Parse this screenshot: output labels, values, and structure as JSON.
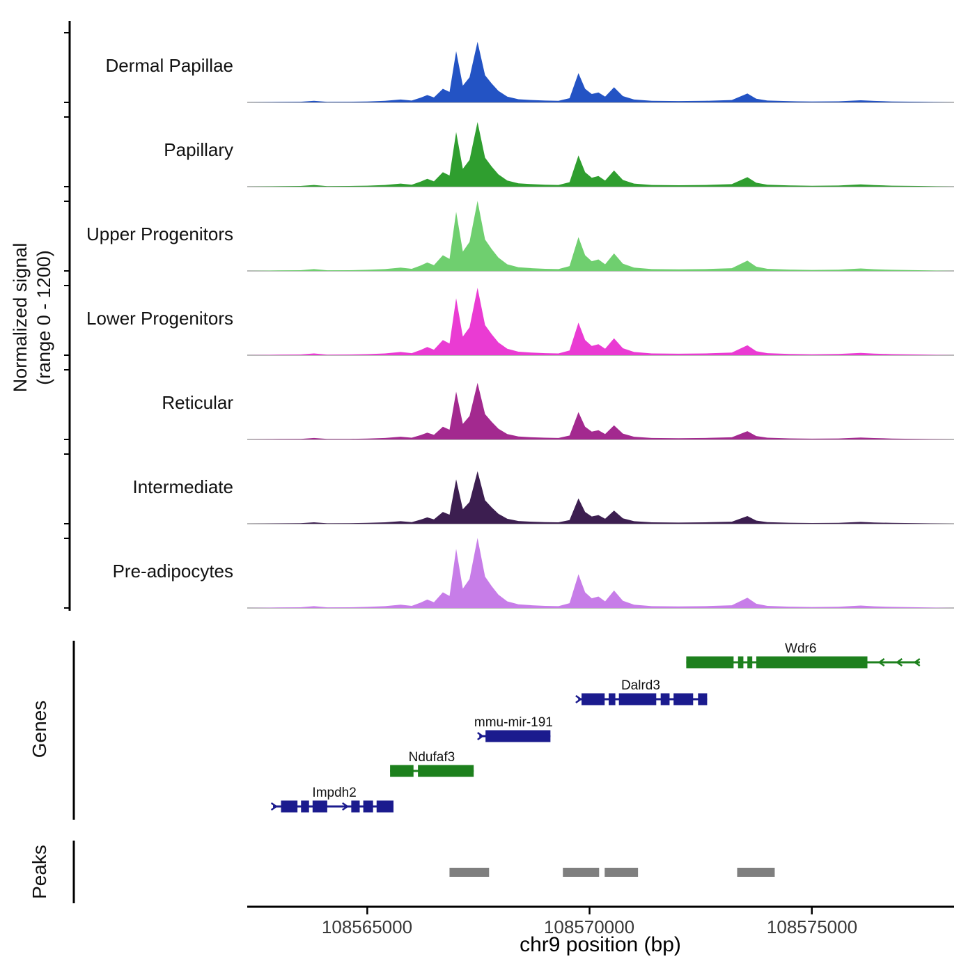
{
  "figure": {
    "y_axis_label_line1": "Normalized signal",
    "y_axis_label_line2": "(range 0 - 1200)",
    "genes_section_label": "Genes",
    "peaks_section_label": "Peaks",
    "x_axis_label": "chr9 position (bp)"
  },
  "chart_data": {
    "type": "area",
    "subtype": "genome-signal-tracks",
    "title": "",
    "xlabel": "chr9 position (bp)",
    "ylabel": "Normalized signal (range 0 - 1200)",
    "xlim_bp": [
      108562300,
      108578200
    ],
    "ylim": [
      0,
      1200
    ],
    "x_ticks_bp": [
      108565000,
      108570000,
      108575000
    ],
    "x_tick_labels": [
      "108565000",
      "108570000",
      "108575000"
    ],
    "x_bp": [
      108562300,
      108563000,
      108563500,
      108563800,
      108564100,
      108564600,
      108565000,
      108565400,
      108565750,
      108566000,
      108566200,
      108566350,
      108566500,
      108566700,
      108566850,
      108567000,
      108567150,
      108567300,
      108567480,
      108567650,
      108567800,
      108567950,
      108568150,
      108568400,
      108568700,
      108569000,
      108569300,
      108569550,
      108569750,
      108569900,
      108570050,
      108570200,
      108570350,
      108570550,
      108570750,
      108571000,
      108571400,
      108572000,
      108572600,
      108573200,
      108573550,
      108573750,
      108574000,
      108574500,
      108575000,
      108575600,
      108576100,
      108576400,
      108576800,
      108577400,
      108578200
    ],
    "profile_values": [
      0,
      8,
      12,
      30,
      10,
      12,
      18,
      30,
      55,
      35,
      90,
      140,
      95,
      260,
      200,
      980,
      320,
      480,
      1160,
      520,
      360,
      220,
      110,
      60,
      45,
      35,
      30,
      80,
      560,
      260,
      160,
      190,
      110,
      290,
      120,
      55,
      30,
      25,
      30,
      45,
      170,
      70,
      35,
      22,
      16,
      20,
      40,
      28,
      18,
      12,
      0
    ],
    "tracks": [
      {
        "name": "Dermal Papillae",
        "color": "#2353c4",
        "scale": 0.9
      },
      {
        "name": "Papillary",
        "color": "#2f9e2f",
        "scale": 0.96
      },
      {
        "name": "Upper Progenitors",
        "color": "#6fcf6f",
        "scale": 1.04
      },
      {
        "name": "Lower Progenitors",
        "color": "#ea3bd3",
        "scale": 1.0
      },
      {
        "name": "Reticular",
        "color": "#a3298f",
        "scale": 0.84
      },
      {
        "name": "Intermediate",
        "color": "#3c1e50",
        "scale": 0.78
      },
      {
        "name": "Pre-adipocytes",
        "color": "#c77de8",
        "scale": 1.04
      }
    ],
    "genes": [
      {
        "name": "Wdr6",
        "color": "#1d801d",
        "strand": "-",
        "row": 0,
        "start_bp": 108572175,
        "end_bp": 108577430,
        "exons": [
          [
            108572175,
            108573240
          ],
          [
            108573340,
            108573460
          ],
          [
            108573550,
            108573660
          ],
          [
            108573750,
            108576250
          ]
        ],
        "arrows_bp": [
          108576550,
          108576950,
          108577350
        ],
        "label_bp": 108574750
      },
      {
        "name": "Dalrd3",
        "color": "#1b1b8e",
        "strand": "+",
        "row": 1,
        "start_bp": 108569745,
        "end_bp": 108572645,
        "exons": [
          [
            108569820,
            108570340
          ],
          [
            108570430,
            108570580
          ],
          [
            108570660,
            108571500
          ],
          [
            108571600,
            108571800
          ],
          [
            108571890,
            108572330
          ],
          [
            108572440,
            108572645
          ]
        ],
        "arrows_bp": [
          108569770
        ],
        "label_bp": 108571150
      },
      {
        "name": "mmu-mir-191",
        "color": "#1b1b8e",
        "strand": "+",
        "row": 2,
        "start_bp": 108567520,
        "end_bp": 108569120,
        "exons": [
          [
            108567660,
            108569120
          ]
        ],
        "arrows_bp": [
          108567560
        ],
        "label_bp": 108568290
      },
      {
        "name": "Ndufaf3",
        "color": "#1d801d",
        "strand": "-",
        "row": 3,
        "start_bp": 108565513,
        "end_bp": 108567394,
        "exons": [
          [
            108565513,
            108566040
          ],
          [
            108566140,
            108567394
          ]
        ],
        "arrows_bp": [],
        "label_bp": 108566450
      },
      {
        "name": "Impdh2",
        "color": "#1b1b8e",
        "strand": "+",
        "row": 4,
        "start_bp": 108562880,
        "end_bp": 108565590,
        "exons": [
          [
            108563060,
            108563430
          ],
          [
            108563510,
            108563690
          ],
          [
            108563770,
            108564100
          ],
          [
            108564640,
            108564830
          ],
          [
            108564910,
            108565130
          ],
          [
            108565210,
            108565590
          ]
        ],
        "arrows_bp": [
          108562920,
          108564520
        ],
        "label_bp": 108564260
      }
    ],
    "peaks_bp": [
      [
        108566850,
        108567740
      ],
      [
        108569400,
        108570215
      ],
      [
        108570340,
        108571090
      ],
      [
        108573320,
        108574165
      ]
    ],
    "peak_color": "#7f7f7f",
    "legend_position": "none",
    "grid": false
  }
}
